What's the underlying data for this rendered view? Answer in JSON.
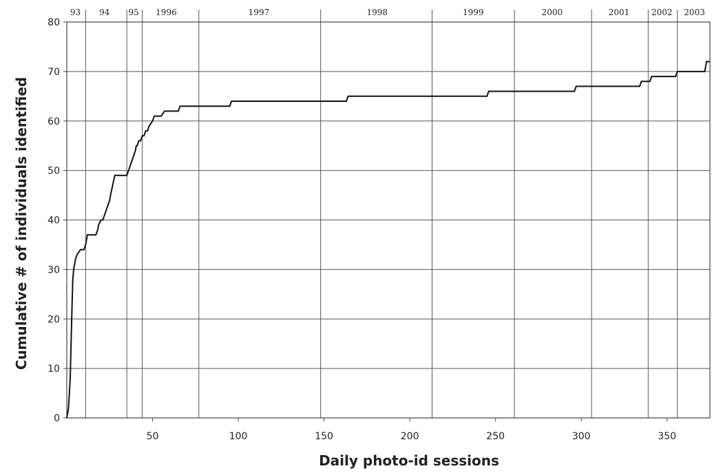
{
  "chart_data": {
    "type": "line",
    "xlabel": "Daily photo-id sessions",
    "ylabel": "Cumulative # of individuals identified",
    "xlim": [
      0,
      375
    ],
    "ylim": [
      0,
      80
    ],
    "x_ticks": [
      50,
      100,
      150,
      200,
      250,
      300,
      350
    ],
    "y_ticks": [
      0,
      10,
      20,
      30,
      40,
      50,
      60,
      70,
      80
    ],
    "grid": true,
    "year_boundaries": [
      11,
      35,
      44,
      77,
      148,
      213,
      261,
      306,
      339,
      356
    ],
    "year_labels": [
      {
        "label": "93",
        "x": 5
      },
      {
        "label": "94",
        "x": 22
      },
      {
        "label": "95",
        "x": 39
      },
      {
        "label": "1996",
        "x": 58
      },
      {
        "label": "1997",
        "x": 112
      },
      {
        "label": "1998",
        "x": 181
      },
      {
        "label": "1999",
        "x": 237
      },
      {
        "label": "2000",
        "x": 283
      },
      {
        "label": "2001",
        "x": 322
      },
      {
        "label": "2002",
        "x": 347
      },
      {
        "label": "2003",
        "x": 366
      }
    ],
    "series": [
      {
        "x": [
          0,
          1,
          2,
          2.5,
          3,
          3.5,
          4,
          5,
          6,
          8,
          10,
          11,
          11.5,
          12,
          15,
          17,
          18,
          18.5,
          20,
          21,
          22,
          23,
          24,
          25,
          25.5,
          28,
          30,
          35,
          36,
          37,
          38,
          39,
          40,
          40.5,
          41,
          42,
          43,
          44,
          45,
          46,
          47,
          48,
          50,
          51,
          52,
          54,
          55,
          57,
          60,
          61,
          63,
          65,
          66,
          72,
          73,
          75,
          77,
          90,
          95,
          96,
          140,
          158,
          159,
          163,
          164,
          245,
          246,
          296,
          297,
          334,
          335,
          340,
          341,
          355,
          356,
          372,
          373,
          375
        ],
        "y": [
          0,
          2,
          8,
          15,
          22,
          28,
          30,
          32,
          33,
          34,
          34,
          35,
          36,
          37,
          37,
          37,
          38,
          39,
          40,
          40,
          41,
          42,
          43,
          44,
          45,
          49,
          49,
          49,
          50,
          51,
          52,
          53,
          54,
          55,
          55,
          56,
          56,
          57,
          57,
          58,
          58,
          59,
          60,
          61,
          61,
          61,
          61,
          62,
          62,
          62,
          62,
          62,
          63,
          63,
          63,
          63,
          63,
          63,
          63,
          64,
          64,
          64,
          64,
          64,
          65,
          65,
          66,
          66,
          67,
          67,
          68,
          68,
          69,
          69,
          70,
          70,
          72,
          72
        ]
      }
    ]
  }
}
